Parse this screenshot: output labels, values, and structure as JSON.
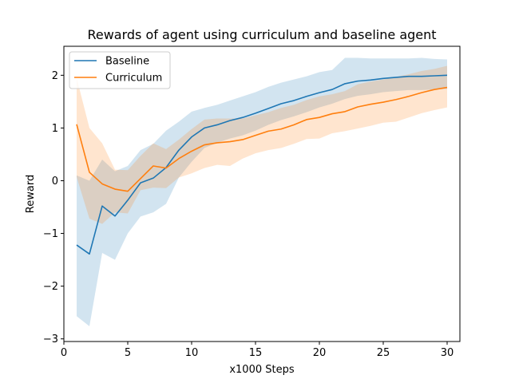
{
  "chart_data": {
    "type": "line",
    "title": "Rewards of agent using curriculum and baseline agent",
    "xlabel": "x1000 Steps",
    "ylabel": "Reward",
    "xlim": [
      0,
      31
    ],
    "ylim": [
      -3.05,
      2.55
    ],
    "xticks": [
      0,
      5,
      10,
      15,
      20,
      25,
      30
    ],
    "yticks": [
      -3,
      -2,
      -1,
      0,
      1,
      2
    ],
    "legend": "top-left",
    "grid": false,
    "x": [
      1,
      2,
      3,
      4,
      5,
      6,
      7,
      8,
      9,
      10,
      11,
      12,
      13,
      14,
      15,
      16,
      17,
      18,
      19,
      20,
      21,
      22,
      23,
      24,
      25,
      26,
      27,
      28,
      29,
      30
    ],
    "series": [
      {
        "name": "Baseline",
        "color": "#1f77b4",
        "band_color": "#1f77b4",
        "values": [
          -1.22,
          -1.39,
          -0.48,
          -0.67,
          -0.37,
          -0.04,
          0.05,
          0.25,
          0.58,
          0.83,
          1.0,
          1.06,
          1.14,
          1.2,
          1.28,
          1.37,
          1.46,
          1.52,
          1.6,
          1.67,
          1.73,
          1.84,
          1.89,
          1.91,
          1.94,
          1.96,
          1.98,
          1.98,
          1.99,
          2.0
        ],
        "lower": [
          -2.57,
          -2.76,
          -1.37,
          -1.5,
          -1.0,
          -0.68,
          -0.6,
          -0.44,
          0.06,
          0.36,
          0.62,
          0.72,
          0.8,
          0.86,
          0.95,
          1.06,
          1.15,
          1.22,
          1.3,
          1.39,
          1.46,
          1.55,
          1.61,
          1.64,
          1.68,
          1.7,
          1.72,
          1.72,
          1.73,
          1.74
        ],
        "upper": [
          0.1,
          0.0,
          0.4,
          0.18,
          0.28,
          0.58,
          0.7,
          0.95,
          1.12,
          1.31,
          1.38,
          1.44,
          1.52,
          1.6,
          1.68,
          1.78,
          1.86,
          1.92,
          1.98,
          2.06,
          2.1,
          2.33,
          2.33,
          2.32,
          2.32,
          2.32,
          2.32,
          2.33,
          2.31,
          2.3
        ]
      },
      {
        "name": "Curriculum",
        "color": "#ff7f0e",
        "band_color": "#ff7f0e",
        "values": [
          1.07,
          0.16,
          -0.06,
          -0.16,
          -0.2,
          0.04,
          0.28,
          0.24,
          0.42,
          0.56,
          0.68,
          0.72,
          0.74,
          0.78,
          0.86,
          0.94,
          0.98,
          1.06,
          1.16,
          1.2,
          1.27,
          1.31,
          1.4,
          1.45,
          1.49,
          1.54,
          1.6,
          1.67,
          1.73,
          1.77
        ],
        "lower": [
          0.07,
          -0.72,
          -0.82,
          -0.6,
          -0.62,
          -0.18,
          -0.13,
          -0.14,
          0.06,
          0.14,
          0.24,
          0.3,
          0.28,
          0.42,
          0.52,
          0.58,
          0.62,
          0.7,
          0.79,
          0.8,
          0.9,
          0.94,
          0.99,
          1.04,
          1.1,
          1.12,
          1.2,
          1.28,
          1.34,
          1.39
        ],
        "upper": [
          1.95,
          1.0,
          0.71,
          0.21,
          0.2,
          0.47,
          0.71,
          0.6,
          0.78,
          0.98,
          1.16,
          1.18,
          1.18,
          1.18,
          1.24,
          1.3,
          1.38,
          1.44,
          1.53,
          1.6,
          1.64,
          1.7,
          1.83,
          1.88,
          1.92,
          1.97,
          2.02,
          2.08,
          2.12,
          2.18
        ]
      }
    ]
  }
}
